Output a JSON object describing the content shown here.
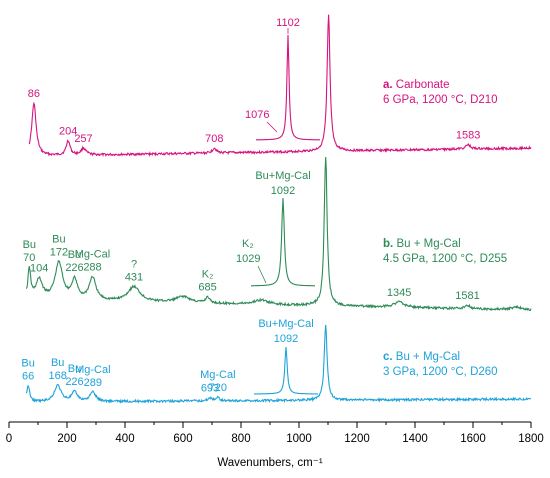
{
  "chart_data": {
    "type": "line",
    "xlabel": "Wavenumbers, cm⁻¹",
    "xlim": [
      0,
      1800
    ],
    "xticks": [
      0,
      200,
      400,
      600,
      800,
      1000,
      1200,
      1400,
      1600,
      1800
    ],
    "grid": false,
    "colors": {
      "a": "#d6137f",
      "b": "#2e8b57",
      "c": "#1ea3d9",
      "axis": "#000000"
    },
    "series": [
      {
        "key": "a",
        "legend": {
          "letter": "a.",
          "name": "Carbonate",
          "conditions": "6 GPa, 1200 °C, D210"
        },
        "peaks": [
          {
            "x": 86,
            "h": 0.62,
            "w": 9
          },
          {
            "x": 204,
            "h": 0.17,
            "w": 8
          },
          {
            "x": 257,
            "h": 0.08,
            "w": 10
          },
          {
            "x": 708,
            "h": 0.06,
            "w": 8
          },
          {
            "x": 1102,
            "h": 1.6,
            "w": 6
          },
          {
            "x": 1583,
            "h": 0.05,
            "w": 10
          }
        ],
        "labels": [
          {
            "lines": [
              "86"
            ],
            "x": 86
          },
          {
            "lines": [
              "204"
            ],
            "x": 204
          },
          {
            "lines": [
              "257"
            ],
            "x": 257
          },
          {
            "lines": [
              "708"
            ],
            "x": 708
          },
          {
            "lines": [
              "1583"
            ],
            "x": 1583
          }
        ],
        "inset": {
          "labels": [
            "1102",
            "1076"
          ]
        }
      },
      {
        "key": "b",
        "legend": {
          "letter": "b.",
          "name": "Bu + Mg-Cal",
          "conditions": "4.5 GPa, 1200 °C, D255"
        },
        "peaks": [
          {
            "x": 70,
            "h": 0.33,
            "w": 6
          },
          {
            "x": 104,
            "h": 0.22,
            "w": 14
          },
          {
            "x": 172,
            "h": 0.42,
            "w": 16
          },
          {
            "x": 226,
            "h": 0.22,
            "w": 12
          },
          {
            "x": 288,
            "h": 0.26,
            "w": 14
          },
          {
            "x": 431,
            "h": 0.17,
            "w": 26
          },
          {
            "x": 600,
            "h": 0.07,
            "w": 30
          },
          {
            "x": 685,
            "h": 0.07,
            "w": 8
          },
          {
            "x": 870,
            "h": 0.05,
            "w": 30
          },
          {
            "x": 1092,
            "h": 1.7,
            "w": 6
          },
          {
            "x": 1345,
            "h": 0.06,
            "w": 22
          },
          {
            "x": 1581,
            "h": 0.04,
            "w": 10
          },
          {
            "x": 1750,
            "h": 0.03,
            "w": 20
          }
        ],
        "labels": [
          {
            "lines": [
              "Bu",
              "70"
            ],
            "x": 70
          },
          {
            "lines": [
              "104"
            ],
            "x": 104
          },
          {
            "lines": [
              "Bu",
              "172"
            ],
            "x": 172
          },
          {
            "lines": [
              "Bu",
              "226"
            ],
            "x": 226
          },
          {
            "lines": [
              "Mg-Cal",
              "288"
            ],
            "x": 288
          },
          {
            "lines": [
              "?",
              "431"
            ],
            "x": 431
          },
          {
            "lines": [
              "K₂",
              "685"
            ],
            "x": 685
          },
          {
            "lines": [
              "1345"
            ],
            "x": 1345
          },
          {
            "lines": [
              "1581"
            ],
            "x": 1581
          }
        ],
        "inset": {
          "labels": [
            "Bu+Mg-Cal",
            "1092",
            "K₂",
            "1029"
          ]
        }
      },
      {
        "key": "c",
        "legend": {
          "letter": "c.",
          "name": "Bu + Mg-Cal",
          "conditions": "3 GPa, 1200 °C, D260"
        },
        "peaks": [
          {
            "x": 66,
            "h": 0.28,
            "w": 6
          },
          {
            "x": 168,
            "h": 0.28,
            "w": 14
          },
          {
            "x": 226,
            "h": 0.16,
            "w": 12
          },
          {
            "x": 289,
            "h": 0.16,
            "w": 12
          },
          {
            "x": 693,
            "h": 0.05,
            "w": 8
          },
          {
            "x": 720,
            "h": 0.06,
            "w": 8
          },
          {
            "x": 1092,
            "h": 1.3,
            "w": 6
          }
        ],
        "labels": [
          {
            "lines": [
              "Bu",
              "66"
            ],
            "x": 66
          },
          {
            "lines": [
              "Bu",
              "168"
            ],
            "x": 168
          },
          {
            "lines": [
              "Bu",
              "226"
            ],
            "x": 226
          },
          {
            "lines": [
              "Mg-Cal",
              "289"
            ],
            "x": 289
          },
          {
            "lines": [
              "693"
            ],
            "x": 693
          },
          {
            "lines": [
              "Mg-Cal",
              "720"
            ],
            "x": 720
          }
        ],
        "inset": {
          "labels": [
            "Bu+Mg-Cal",
            "1092"
          ]
        }
      }
    ]
  }
}
